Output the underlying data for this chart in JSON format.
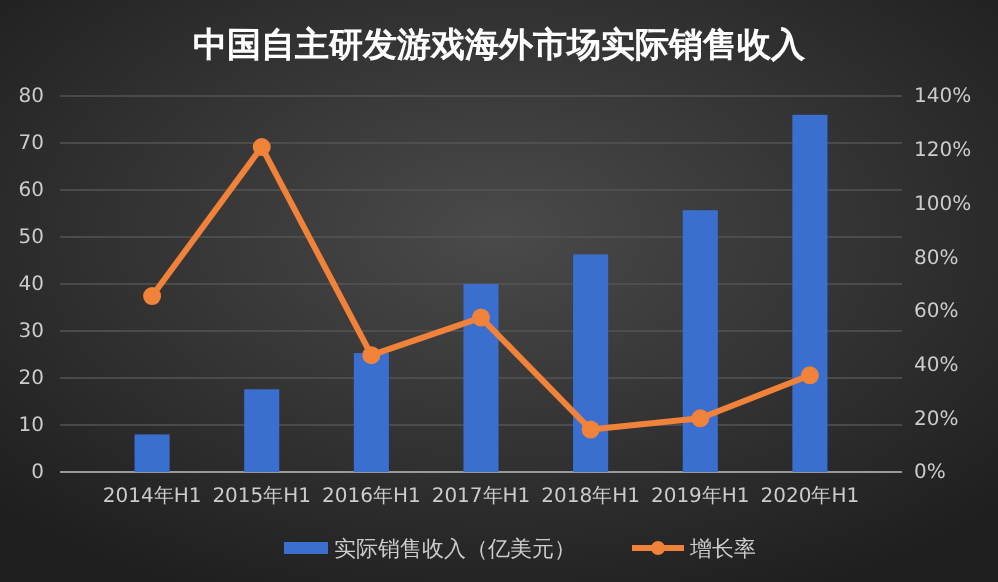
{
  "chart_data": {
    "type": "bar",
    "title": "中国自主研发游戏海外市场实际销售收入",
    "categories": [
      "2014年H1",
      "2015年H1",
      "2016年H1",
      "2017年H1",
      "2018年H1",
      "2019年H1",
      "2020年H1"
    ],
    "series": [
      {
        "name": "实际销售收入（亿美元）",
        "color": "#3a6fd0",
        "values": [
          8,
          17.6,
          25.3,
          40,
          46.3,
          55.7,
          76
        ]
      },
      {
        "name": "增长率",
        "type": "line",
        "axis": "y2",
        "color": "#f0823a",
        "values": [
          65.5,
          121,
          43.5,
          57.5,
          15.8,
          20,
          36
        ]
      }
    ],
    "ylim": [
      0,
      80
    ],
    "yticks": [
      0,
      10,
      20,
      30,
      40,
      50,
      60,
      70,
      80
    ],
    "y2lim": [
      0,
      140
    ],
    "y2ticks": [
      {
        "value": 0,
        "label": "0%"
      },
      {
        "value": 20,
        "label": "20%"
      },
      {
        "value": 40,
        "label": "40%"
      },
      {
        "value": 60,
        "label": "60%"
      },
      {
        "value": 80,
        "label": "80%"
      },
      {
        "value": 100,
        "label": "100%"
      },
      {
        "value": 120,
        "label": "120%"
      },
      {
        "value": 140,
        "label": "140%"
      }
    ],
    "grid": "y",
    "legend": "bottom",
    "marker": "circle"
  }
}
